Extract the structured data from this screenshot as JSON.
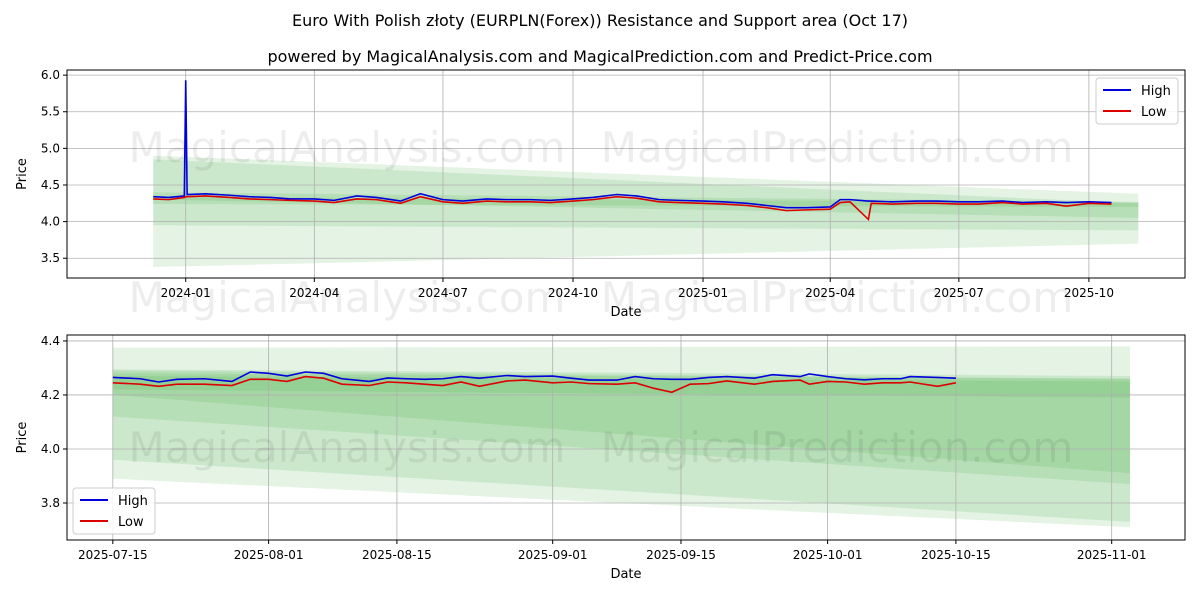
{
  "title": "Euro With Polish złoty (EURPLN(Forex)) Resistance and Support area (Oct 17)",
  "subtitle": "powered by MagicalAnalysis.com and MagicalPrediction.com and Predict-Price.com",
  "watermarks": [
    "MagicalAnalysis.com",
    "MagicalPrediction.com"
  ],
  "colors": {
    "high": "#0000dd",
    "low": "#dd0000",
    "band": "#2ca02c"
  },
  "chart_data": [
    {
      "type": "line",
      "xlabel": "Date",
      "ylabel": "Price",
      "xlim": [
        "2023-10-09",
        "2025-12-08"
      ],
      "ylim": [
        3.23,
        6.07
      ],
      "grid": true,
      "legend": {
        "placement": "top-right",
        "entries": [
          "High",
          "Low"
        ]
      },
      "xticks": [
        [
          "2024-01-01",
          "2024-01"
        ],
        [
          "2024-04-01",
          "2024-04"
        ],
        [
          "2024-07-01",
          "2024-07"
        ],
        [
          "2024-10-01",
          "2024-10"
        ],
        [
          "2025-01-01",
          "2025-01"
        ],
        [
          "2025-04-01",
          "2025-04"
        ],
        [
          "2025-07-01",
          "2025-07"
        ],
        [
          "2025-10-01",
          "2025-10"
        ]
      ],
      "yticks": [
        [
          "3.5",
          "3.5"
        ],
        [
          "4.0",
          "4.0"
        ],
        [
          "4.5",
          "4.5"
        ],
        [
          "5.0",
          "5.0"
        ],
        [
          "5.5",
          "5.5"
        ],
        [
          "6.0",
          "6.0"
        ]
      ],
      "x": [
        "2023-12-09",
        "2023-12-20",
        "2023-12-31",
        "2024-01-01",
        "2024-01-02",
        "2024-01-15",
        "2024-02-01",
        "2024-02-15",
        "2024-03-01",
        "2024-03-15",
        "2024-04-01",
        "2024-04-15",
        "2024-05-01",
        "2024-05-15",
        "2024-06-01",
        "2024-06-15",
        "2024-07-01",
        "2024-07-15",
        "2024-08-01",
        "2024-08-15",
        "2024-09-01",
        "2024-09-15",
        "2024-10-01",
        "2024-10-15",
        "2024-11-01",
        "2024-11-15",
        "2024-12-01",
        "2024-12-15",
        "2025-01-01",
        "2025-01-15",
        "2025-02-01",
        "2025-02-15",
        "2025-03-01",
        "2025-03-15",
        "2025-04-01",
        "2025-04-08",
        "2025-04-15",
        "2025-04-28",
        "2025-04-30",
        "2025-05-15",
        "2025-06-01",
        "2025-06-15",
        "2025-07-01",
        "2025-07-15",
        "2025-08-01",
        "2025-08-15",
        "2025-09-01",
        "2025-09-15",
        "2025-10-01",
        "2025-10-17"
      ],
      "series": [
        {
          "name": "High",
          "values": [
            4.34,
            4.33,
            4.35,
            5.93,
            4.37,
            4.38,
            4.36,
            4.34,
            4.33,
            4.31,
            4.31,
            4.29,
            4.35,
            4.33,
            4.28,
            4.38,
            4.3,
            4.28,
            4.31,
            4.3,
            4.3,
            4.29,
            4.31,
            4.33,
            4.37,
            4.35,
            4.3,
            4.29,
            4.28,
            4.27,
            4.25,
            4.22,
            4.19,
            4.19,
            4.2,
            4.3,
            4.3,
            4.28,
            4.28,
            4.27,
            4.28,
            4.28,
            4.27,
            4.27,
            4.28,
            4.26,
            4.27,
            4.26,
            4.27,
            4.26
          ]
        },
        {
          "name": "Low",
          "values": [
            4.31,
            4.3,
            4.33,
            4.34,
            4.34,
            4.35,
            4.33,
            4.31,
            4.3,
            4.29,
            4.28,
            4.26,
            4.31,
            4.3,
            4.25,
            4.34,
            4.27,
            4.25,
            4.28,
            4.27,
            4.27,
            4.26,
            4.28,
            4.3,
            4.34,
            4.32,
            4.27,
            4.26,
            4.25,
            4.24,
            4.22,
            4.19,
            4.15,
            4.16,
            4.17,
            4.26,
            4.27,
            4.03,
            4.25,
            4.24,
            4.25,
            4.25,
            4.24,
            4.24,
            4.26,
            4.24,
            4.25,
            4.21,
            4.25,
            4.24
          ]
        }
      ],
      "bands": {
        "x": [
          "2023-12-09",
          "2025-11-05"
        ],
        "ranges": [
          [
            [
              4.9,
              3.38
            ],
            [
              4.38,
              3.7
            ]
          ],
          [
            [
              4.85,
              3.95
            ],
            [
              4.25,
              3.88
            ]
          ],
          [
            [
              4.4,
              4.3
            ],
            [
              4.27,
              4.05
            ]
          ],
          [
            [
              4.34,
              4.24
            ],
            [
              4.26,
              4.2
            ]
          ]
        ]
      }
    },
    {
      "type": "line",
      "xlabel": "Date",
      "ylabel": "Price",
      "xlim": [
        "2025-07-10",
        "2025-11-09"
      ],
      "ylim": [
        3.663,
        4.422
      ],
      "grid": true,
      "legend": {
        "placement": "bottom-left",
        "entries": [
          "High",
          "Low"
        ]
      },
      "xticks": [
        [
          "2025-07-15",
          "2025-07-15"
        ],
        [
          "2025-08-01",
          "2025-08-01"
        ],
        [
          "2025-08-15",
          "2025-08-15"
        ],
        [
          "2025-09-01",
          "2025-09-01"
        ],
        [
          "2025-09-15",
          "2025-09-15"
        ],
        [
          "2025-10-01",
          "2025-10-01"
        ],
        [
          "2025-10-15",
          "2025-10-15"
        ],
        [
          "2025-11-01",
          "2025-11-01"
        ]
      ],
      "yticks": [
        [
          "3.8",
          "3.8"
        ],
        [
          "4.0",
          "4.0"
        ],
        [
          "4.2",
          "4.2"
        ],
        [
          "4.4",
          "4.4"
        ]
      ],
      "x": [
        "2025-07-15",
        "2025-07-18",
        "2025-07-20",
        "2025-07-22",
        "2025-07-25",
        "2025-07-28",
        "2025-07-30",
        "2025-08-01",
        "2025-08-03",
        "2025-08-05",
        "2025-08-07",
        "2025-08-09",
        "2025-08-12",
        "2025-08-14",
        "2025-08-16",
        "2025-08-18",
        "2025-08-20",
        "2025-08-22",
        "2025-08-24",
        "2025-08-27",
        "2025-08-29",
        "2025-09-01",
        "2025-09-03",
        "2025-09-05",
        "2025-09-08",
        "2025-09-10",
        "2025-09-12",
        "2025-09-14",
        "2025-09-16",
        "2025-09-18",
        "2025-09-20",
        "2025-09-23",
        "2025-09-25",
        "2025-09-28",
        "2025-09-29",
        "2025-10-01",
        "2025-10-03",
        "2025-10-05",
        "2025-10-07",
        "2025-10-09",
        "2025-10-10",
        "2025-10-13",
        "2025-10-15"
      ],
      "series": [
        {
          "name": "High",
          "values": [
            4.265,
            4.26,
            4.248,
            4.258,
            4.26,
            4.25,
            4.285,
            4.28,
            4.27,
            4.285,
            4.28,
            4.26,
            4.25,
            4.263,
            4.26,
            4.258,
            4.26,
            4.268,
            4.262,
            4.272,
            4.268,
            4.27,
            4.262,
            4.255,
            4.255,
            4.268,
            4.26,
            4.258,
            4.258,
            4.265,
            4.268,
            4.262,
            4.275,
            4.268,
            4.278,
            4.268,
            4.26,
            4.256,
            4.26,
            4.26,
            4.268,
            4.265,
            4.262
          ]
        },
        {
          "name": "Low",
          "values": [
            4.245,
            4.24,
            4.232,
            4.24,
            4.24,
            4.235,
            4.258,
            4.258,
            4.25,
            4.268,
            4.262,
            4.24,
            4.235,
            4.248,
            4.245,
            4.24,
            4.235,
            4.248,
            4.232,
            4.252,
            4.255,
            4.245,
            4.248,
            4.242,
            4.24,
            4.245,
            4.225,
            4.21,
            4.24,
            4.242,
            4.252,
            4.24,
            4.25,
            4.255,
            4.24,
            4.25,
            4.248,
            4.24,
            4.245,
            4.245,
            4.248,
            4.232,
            4.245
          ]
        }
      ],
      "bands": {
        "x": [
          "2025-07-15",
          "2025-11-03"
        ],
        "ranges": [
          [
            [
              4.375,
              3.89
            ],
            [
              4.38,
              3.71
            ]
          ],
          [
            [
              4.295,
              3.96
            ],
            [
              4.27,
              3.73
            ]
          ],
          [
            [
              4.29,
              4.12
            ],
            [
              4.26,
              3.87
            ]
          ],
          [
            [
              4.28,
              4.2
            ],
            [
              4.26,
              3.91
            ]
          ],
          [
            [
              4.27,
              4.22
            ],
            [
              4.25,
              4.19
            ]
          ]
        ]
      }
    }
  ]
}
